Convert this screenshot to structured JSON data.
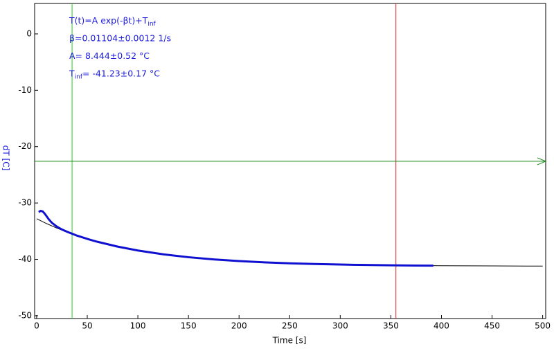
{
  "chart_data": {
    "type": "line",
    "xlabel": "Time [s]",
    "ylabel": "dT [C]",
    "xlim": [
      -2,
      503
    ],
    "ylim": [
      -50.5,
      5.4
    ],
    "xticks": [
      0,
      50,
      100,
      150,
      200,
      250,
      300,
      350,
      400,
      450,
      500
    ],
    "yticks": [
      0,
      -10,
      -20,
      -30,
      -40,
      -50
    ],
    "series": [
      {
        "color": "#1010d0",
        "x": [
          2,
          4,
          6,
          8,
          10,
          12,
          15,
          20,
          25,
          30,
          40,
          50,
          60,
          80,
          100,
          125,
          150,
          175,
          200,
          225,
          250,
          275,
          300,
          325,
          350,
          375,
          392
        ],
        "values": [
          -31.6,
          -31.4,
          -31.5,
          -31.9,
          -32.4,
          -32.9,
          -33.5,
          -34.2,
          -34.7,
          -35.1,
          -35.8,
          -36.37,
          -36.88,
          -37.74,
          -38.43,
          -39.11,
          -39.62,
          -40.01,
          -40.3,
          -40.53,
          -40.7,
          -40.82,
          -40.92,
          -41.0,
          -41.05,
          -41.1,
          -41.12
        ]
      },
      {
        "color": "#000000",
        "x": [
          0,
          10,
          20,
          30,
          40,
          50,
          60,
          80,
          100,
          125,
          150,
          175,
          200,
          250,
          300,
          350,
          400,
          450,
          500
        ],
        "values": [
          -32.79,
          -33.67,
          -34.46,
          -35.17,
          -35.8,
          -36.37,
          -36.88,
          -37.74,
          -38.43,
          -39.11,
          -39.62,
          -40.01,
          -40.3,
          -40.7,
          -40.92,
          -41.05,
          -41.13,
          -41.17,
          -41.2
        ]
      }
    ],
    "cursors": {
      "x": [
        35,
        355
      ],
      "x_colors": [
        "#22cc22",
        "#dd2222"
      ],
      "y": -22.6,
      "y_color": "#118811"
    },
    "annotations": [
      [
        {
          "t": "T(t)=A exp(-βt)+T"
        },
        {
          "sub": "inf"
        }
      ],
      [
        {
          "t": "β=0.01104±0.0012 1/s"
        }
      ],
      [
        {
          "t": "A= 8.444±0.52 °C"
        }
      ],
      [
        {
          "t": "T"
        },
        {
          "sub": "inf"
        },
        {
          "t": "= -41.23±0.17 °C"
        }
      ]
    ]
  }
}
